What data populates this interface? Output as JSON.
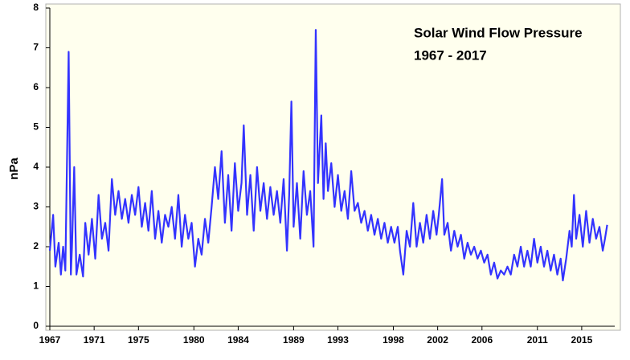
{
  "chart_data": {
    "type": "line",
    "title": "Solar Wind Flow Pressure",
    "subtitle": "1967 - 2017",
    "y_label": "nPa",
    "color": "#3333ff",
    "xlim": [
      1967,
      2017.4
    ],
    "ylim": [
      0,
      8
    ],
    "yticks": [
      0,
      1,
      2,
      3,
      4,
      5,
      6,
      7,
      8
    ],
    "xticks": [
      1967,
      1971,
      1975,
      1980,
      1984,
      1989,
      1993,
      1998,
      2002,
      2006,
      2011,
      2015
    ],
    "x": [
      1967.0,
      1967.3,
      1967.5,
      1967.8,
      1968.0,
      1968.2,
      1968.4,
      1968.7,
      1968.9,
      1969.0,
      1969.2,
      1969.4,
      1969.7,
      1970.0,
      1970.2,
      1970.5,
      1970.8,
      1971.1,
      1971.4,
      1971.7,
      1972.0,
      1972.3,
      1972.6,
      1972.9,
      1973.2,
      1973.5,
      1973.8,
      1974.1,
      1974.4,
      1974.7,
      1975.0,
      1975.3,
      1975.6,
      1975.9,
      1976.2,
      1976.5,
      1976.8,
      1977.1,
      1977.4,
      1977.7,
      1978.0,
      1978.3,
      1978.6,
      1978.9,
      1979.2,
      1979.5,
      1979.8,
      1980.1,
      1980.4,
      1980.7,
      1981.0,
      1981.3,
      1981.6,
      1981.9,
      1982.2,
      1982.5,
      1982.8,
      1983.1,
      1983.4,
      1983.7,
      1984.0,
      1984.3,
      1984.5,
      1984.8,
      1985.1,
      1985.4,
      1985.7,
      1986.0,
      1986.3,
      1986.6,
      1986.9,
      1987.2,
      1987.5,
      1987.8,
      1988.1,
      1988.4,
      1988.6,
      1988.8,
      1989.0,
      1989.3,
      1989.6,
      1989.9,
      1990.2,
      1990.5,
      1990.8,
      1991.0,
      1991.2,
      1991.5,
      1991.7,
      1991.9,
      1992.1,
      1992.4,
      1992.7,
      1993.0,
      1993.3,
      1993.6,
      1993.9,
      1994.2,
      1994.5,
      1994.8,
      1995.1,
      1995.4,
      1995.7,
      1996.0,
      1996.3,
      1996.6,
      1996.9,
      1997.2,
      1997.5,
      1997.8,
      1998.1,
      1998.4,
      1998.6,
      1998.9,
      1999.2,
      1999.5,
      1999.8,
      2000.1,
      2000.4,
      2000.7,
      2001.0,
      2001.3,
      2001.6,
      2001.9,
      2002.1,
      2002.4,
      2002.6,
      2002.9,
      2003.2,
      2003.5,
      2003.8,
      2004.1,
      2004.4,
      2004.7,
      2005.0,
      2005.3,
      2005.6,
      2005.9,
      2006.2,
      2006.5,
      2006.8,
      2007.1,
      2007.4,
      2007.7,
      2008.0,
      2008.3,
      2008.6,
      2008.9,
      2009.2,
      2009.5,
      2009.8,
      2010.1,
      2010.4,
      2010.7,
      2011.0,
      2011.3,
      2011.6,
      2011.9,
      2012.2,
      2012.5,
      2012.8,
      2013.1,
      2013.3,
      2013.6,
      2013.9,
      2014.1,
      2014.3,
      2014.5,
      2014.8,
      2015.1,
      2015.4,
      2015.7,
      2016.0,
      2016.3,
      2016.6,
      2016.9,
      2017.1,
      2017.3
    ],
    "values": [
      1.9,
      2.8,
      1.5,
      2.1,
      1.3,
      2.0,
      1.4,
      6.9,
      1.3,
      2.0,
      4.0,
      1.3,
      1.8,
      1.25,
      2.6,
      1.8,
      2.7,
      1.7,
      3.3,
      2.2,
      2.6,
      1.9,
      3.7,
      2.8,
      3.4,
      2.7,
      3.2,
      2.6,
      3.3,
      2.8,
      3.5,
      2.5,
      3.1,
      2.4,
      3.4,
      2.2,
      2.9,
      2.1,
      2.8,
      2.5,
      3.0,
      2.2,
      3.3,
      2.0,
      2.8,
      2.2,
      2.6,
      1.5,
      2.2,
      1.8,
      2.7,
      2.1,
      3.0,
      4.0,
      3.2,
      4.4,
      2.6,
      3.8,
      2.4,
      4.1,
      2.9,
      3.6,
      5.05,
      2.8,
      3.8,
      2.4,
      4.0,
      2.9,
      3.6,
      2.7,
      3.5,
      2.8,
      3.4,
      2.6,
      3.7,
      1.9,
      3.3,
      5.65,
      2.5,
      3.6,
      2.2,
      3.9,
      2.8,
      3.4,
      2.0,
      7.45,
      3.6,
      5.3,
      3.2,
      4.6,
      3.4,
      4.1,
      3.0,
      3.8,
      2.9,
      3.4,
      2.7,
      3.9,
      2.9,
      3.1,
      2.6,
      2.9,
      2.4,
      2.8,
      2.3,
      2.7,
      2.2,
      2.6,
      2.1,
      2.5,
      2.1,
      2.5,
      1.9,
      1.3,
      2.4,
      2.0,
      3.1,
      2.0,
      2.6,
      2.1,
      2.8,
      2.2,
      2.9,
      2.3,
      2.8,
      3.7,
      2.3,
      2.6,
      1.9,
      2.4,
      2.0,
      2.3,
      1.7,
      2.1,
      1.8,
      2.0,
      1.7,
      1.9,
      1.6,
      1.8,
      1.3,
      1.6,
      1.2,
      1.4,
      1.3,
      1.5,
      1.3,
      1.8,
      1.5,
      2.0,
      1.5,
      1.9,
      1.5,
      2.2,
      1.6,
      2.0,
      1.5,
      1.9,
      1.4,
      1.8,
      1.3,
      1.7,
      1.15,
      1.7,
      2.4,
      2.0,
      3.3,
      2.2,
      2.8,
      2.0,
      2.9,
      2.1,
      2.7,
      2.2,
      2.5,
      1.9,
      2.2,
      2.55
    ]
  }
}
